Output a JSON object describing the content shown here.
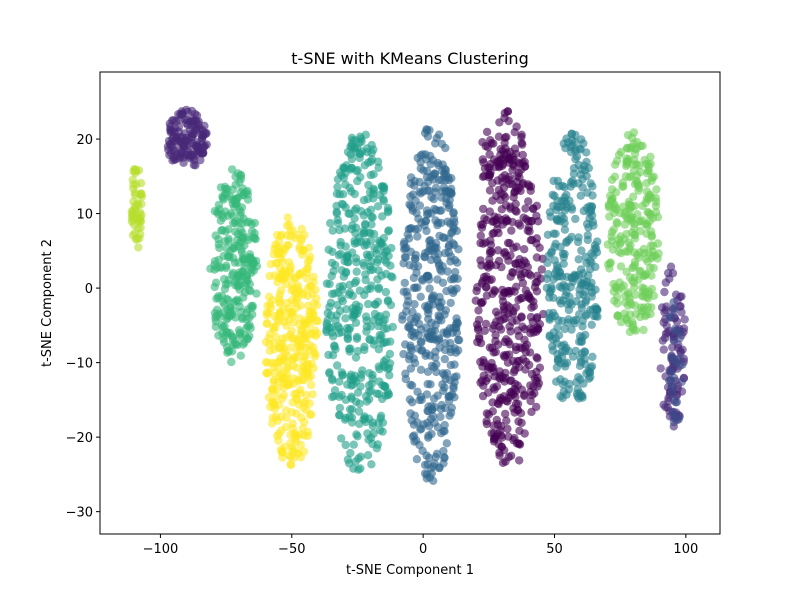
{
  "chart_data": {
    "type": "scatter",
    "title": "t-SNE with KMeans Clustering",
    "xlabel": "t-SNE Component 1",
    "ylabel": "t-SNE Component 2",
    "xlim": [
      -123,
      113
    ],
    "ylim": [
      -33,
      29
    ],
    "xticks": [
      -100,
      -50,
      0,
      50,
      100
    ],
    "yticks": [
      -30,
      -20,
      -10,
      0,
      10,
      20
    ],
    "grid": false,
    "legend": "none",
    "colormap": "viridis",
    "marker_alpha": 0.6,
    "clusters": [
      {
        "id": 0,
        "color": "#440154",
        "regions": [
          {
            "cx": 33,
            "cy": -2,
            "rx": 13,
            "ry": 22,
            "n": 420
          },
          {
            "cx": 30,
            "cy": 18,
            "rx": 9,
            "ry": 6,
            "n": 60
          }
        ]
      },
      {
        "id": 1,
        "color": "#482878",
        "regions": [
          {
            "cx": -90,
            "cy": 20,
            "rx": 8,
            "ry": 4,
            "n": 140
          },
          {
            "cx": 95,
            "cy": -8,
            "rx": 5,
            "ry": 11,
            "n": 90
          }
        ]
      },
      {
        "id": 2,
        "color": "#3e4989",
        "regions": [
          {
            "cx": 96,
            "cy": -10,
            "rx": 3,
            "ry": 9,
            "n": 40
          }
        ]
      },
      {
        "id": 3,
        "color": "#31688e",
        "regions": [
          {
            "cx": 3,
            "cy": -2,
            "rx": 11,
            "ry": 24,
            "n": 420
          }
        ]
      },
      {
        "id": 4,
        "color": "#26828e",
        "regions": [
          {
            "cx": 57,
            "cy": 2,
            "rx": 10,
            "ry": 19,
            "n": 300
          }
        ]
      },
      {
        "id": 5,
        "color": "#1f9e89",
        "regions": [
          {
            "cx": -24,
            "cy": -2,
            "rx": 13,
            "ry": 23,
            "n": 420
          }
        ]
      },
      {
        "id": 6,
        "color": "#35b779",
        "regions": [
          {
            "cx": -72,
            "cy": 3,
            "rx": 9,
            "ry": 13,
            "n": 260
          }
        ]
      },
      {
        "id": 7,
        "color": "#6ece58",
        "regions": [
          {
            "cx": 80,
            "cy": 7,
            "rx": 10,
            "ry": 14,
            "n": 260
          }
        ]
      },
      {
        "id": 8,
        "color": "#b5de2b",
        "regions": [
          {
            "cx": -109,
            "cy": 11,
            "rx": 2,
            "ry": 6,
            "n": 50
          }
        ]
      },
      {
        "id": 9,
        "color": "#fde725",
        "regions": [
          {
            "cx": -50,
            "cy": -7,
            "rx": 10,
            "ry": 17,
            "n": 360
          }
        ]
      }
    ]
  }
}
